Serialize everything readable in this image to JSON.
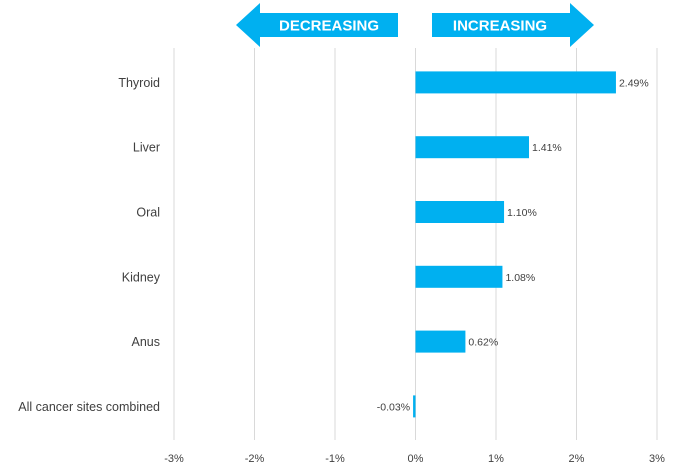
{
  "chart_data": {
    "type": "bar",
    "orientation": "horizontal",
    "categories": [
      "Thyroid",
      "Liver",
      "Oral",
      "Kidney",
      "Anus",
      "All cancer sites combined"
    ],
    "values": [
      2.49,
      1.41,
      1.1,
      1.08,
      0.62,
      -0.03
    ],
    "data_labels": [
      "2.49%",
      "1.41%",
      "1.10%",
      "1.08%",
      "0.62%",
      "-0.03%"
    ],
    "x_ticks": [
      -3,
      -2,
      -1,
      0,
      1,
      2,
      3
    ],
    "x_tick_labels": [
      "-3%",
      "-2%",
      "-1%",
      "0%",
      "1%",
      "2%",
      "3%"
    ],
    "xlim": [
      -3,
      3
    ],
    "grid": "vertical",
    "bar_color": "#00b0f0",
    "grid_color": "#d9d9d9",
    "arrows": {
      "decreasing_label": "DECREASING",
      "increasing_label": "INCREASING",
      "color": "#00b0f0"
    }
  }
}
